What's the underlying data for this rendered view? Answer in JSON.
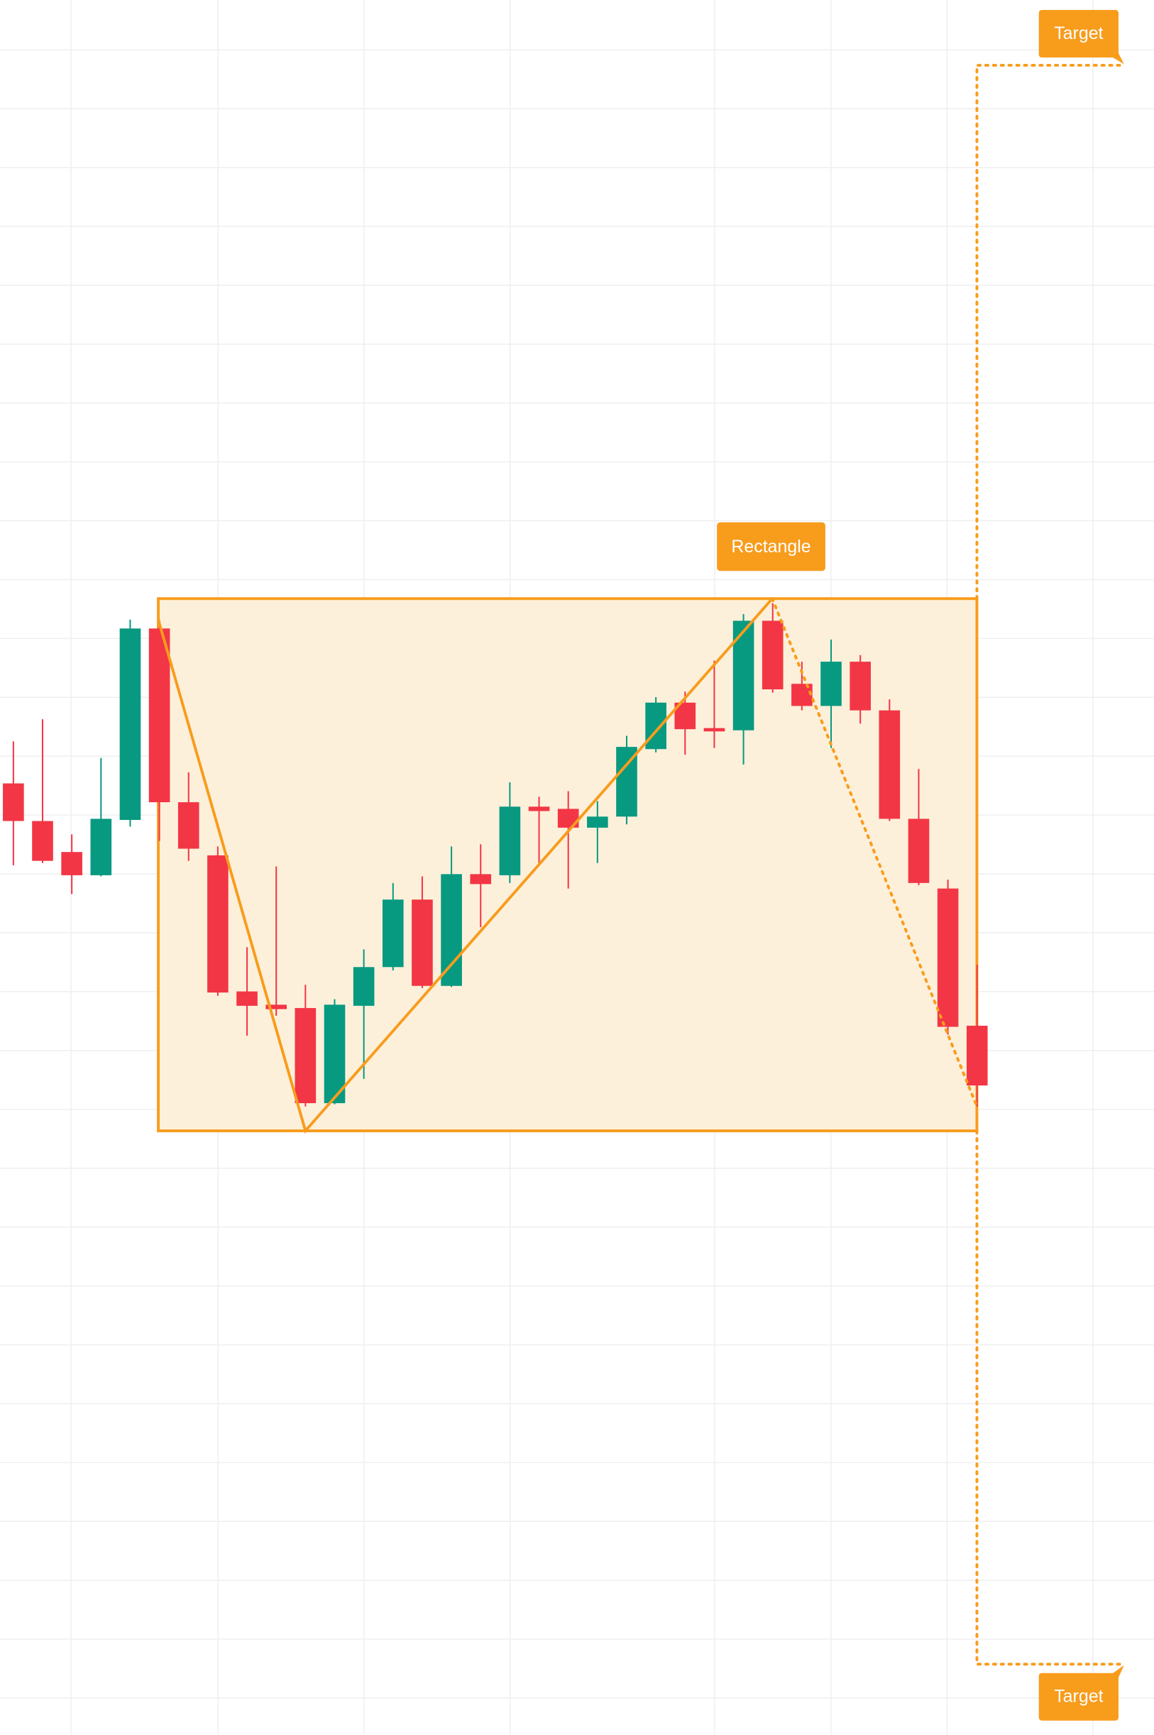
{
  "chart_data": {
    "type": "candlestick",
    "annotations": [
      "Rectangle",
      "Target",
      "Target"
    ],
    "ylim": [
      0,
      1568
    ],
    "up_color": "#089981",
    "down_color": "#f23645",
    "grid": true,
    "open": [
      860,
      826,
      798,
      777,
      827,
      1000,
      843,
      795,
      672,
      660,
      657,
      571,
      659,
      694,
      755,
      677,
      778,
      777,
      839,
      837,
      820,
      830,
      891,
      933,
      910,
      908,
      1007,
      950,
      930,
      970,
      926,
      828,
      765,
      641
    ],
    "high": [
      898,
      918,
      814,
      883,
      1008,
      1008,
      870,
      803,
      712,
      785,
      678,
      665,
      710,
      770,
      776,
      803,
      805,
      861,
      848,
      853,
      844,
      903,
      938,
      943,
      971,
      1013,
      1023,
      970,
      990,
      976,
      936,
      873,
      773,
      696
    ],
    "low": [
      786,
      788,
      760,
      776,
      821,
      808,
      790,
      668,
      632,
      650,
      568,
      570,
      593,
      691,
      675,
      676,
      730,
      770,
      788,
      765,
      788,
      823,
      888,
      886,
      892,
      877,
      942,
      926,
      892,
      914,
      826,
      768,
      633,
      568
    ],
    "close": [
      826,
      790,
      777,
      828,
      1000,
      843,
      801,
      671,
      659,
      656,
      571,
      660,
      694,
      755,
      677,
      778,
      769,
      839,
      835,
      820,
      830,
      893,
      933,
      909,
      907,
      1007,
      945,
      930,
      970,
      926,
      828,
      770,
      640,
      587
    ]
  }
}
